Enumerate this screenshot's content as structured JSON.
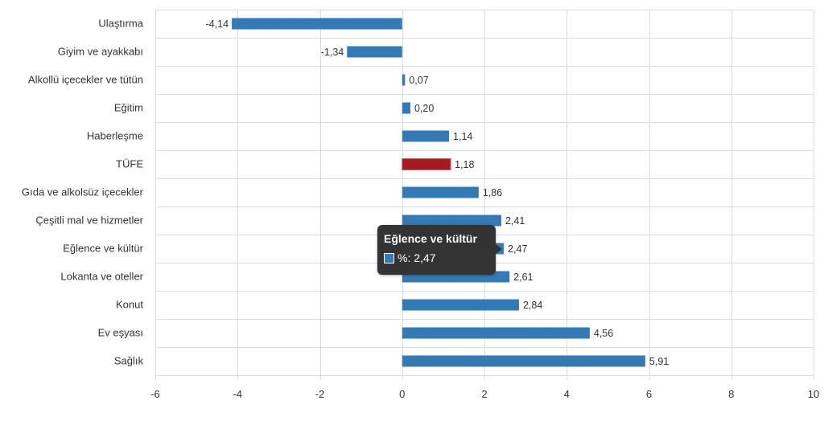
{
  "chart_data": {
    "type": "bar",
    "orientation": "horizontal",
    "categories": [
      "Ulaştırma",
      "Giyim ve ayakkabı",
      "Alkollü içecekler ve tütün",
      "Eğitim",
      "Haberleşme",
      "TÜFE",
      "Gıda ve alkolsüz içecekler",
      "Çeşitli mal ve hizmetler",
      "Eğlence ve kültür",
      "Lokanta ve oteller",
      "Konut",
      "Ev eşyası",
      "Sağlık"
    ],
    "values": [
      -4.14,
      -1.34,
      0.07,
      0.2,
      1.14,
      1.18,
      1.86,
      2.41,
      2.47,
      2.61,
      2.84,
      4.56,
      5.91
    ],
    "value_labels": [
      "-4,14",
      "-1,34",
      "0,07",
      "0,20",
      "1,14",
      "1,18",
      "1,86",
      "2,41",
      "2,47",
      "2,61",
      "2,84",
      "4,56",
      "5,91"
    ],
    "xlim": [
      -6,
      10
    ],
    "x_ticks": [
      -6,
      -4,
      -2,
      0,
      2,
      4,
      6,
      8,
      10
    ],
    "x_tick_labels": [
      "-6",
      "-4",
      "-2",
      "0",
      "2",
      "4",
      "6",
      "8",
      "10"
    ],
    "grid": true,
    "colors": {
      "bar": "#337ab7",
      "highlight": "#a31a1f",
      "highlight_border": "#c96060"
    },
    "highlight_category": "TÜFE"
  },
  "tooltip": {
    "title": "Eğlence ve kültür",
    "series_label": "%",
    "value": "2,47",
    "text": "%: 2,47"
  }
}
